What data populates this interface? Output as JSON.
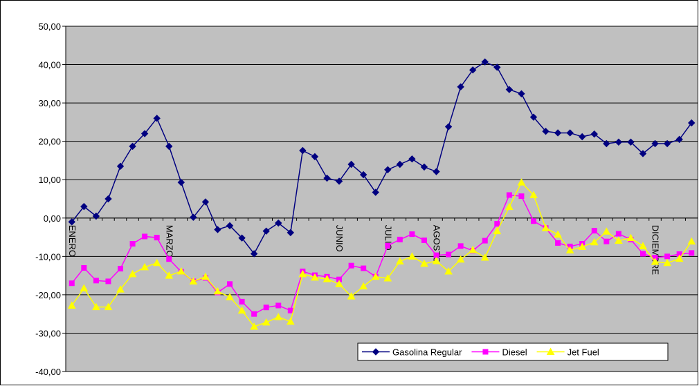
{
  "chart_data": {
    "type": "line",
    "categories": [
      "ENERO",
      null,
      null,
      null,
      null,
      null,
      null,
      null,
      "MARZO",
      null,
      null,
      null,
      null,
      null,
      null,
      null,
      null,
      null,
      null,
      null,
      null,
      null,
      "JUNIO",
      null,
      null,
      null,
      "JULIO",
      null,
      null,
      null,
      "AGOSTO",
      null,
      null,
      null,
      null,
      null,
      null,
      null,
      null,
      null,
      null,
      null,
      null,
      null,
      null,
      null,
      null,
      null,
      "DICIEMBRE",
      null,
      null,
      null
    ],
    "series": [
      {
        "name": "Gasolina Regular",
        "color": "#000080",
        "marker": "diamond",
        "values": [
          -1,
          3,
          0.5,
          5,
          13.5,
          18.7,
          22,
          26,
          18.7,
          9.3,
          0.2,
          4.2,
          -3,
          -2,
          -5.2,
          -9.3,
          -3.4,
          -1.3,
          -3.8,
          17.6,
          16,
          10.4,
          9.6,
          14,
          11.3,
          6.7,
          12.6,
          14,
          15.4,
          13.3,
          12.1,
          23.8,
          34.2,
          38.6,
          40.7,
          39.3,
          33.5,
          32.4,
          26.3,
          22.6,
          22.2,
          22.2,
          21.2,
          21.9,
          19.4,
          19.8,
          19.8,
          16.8,
          19.4,
          19.4,
          20.5,
          24.8
        ]
      },
      {
        "name": "Diesel",
        "color": "#FF00FF",
        "marker": "square",
        "values": [
          -17,
          -13,
          -16.3,
          -16.5,
          -13.2,
          -6.7,
          -4.8,
          -5.1,
          -10.7,
          -14,
          -16.5,
          -15.6,
          -19.4,
          -17.2,
          -21.8,
          -25,
          -23.3,
          -22.8,
          -24.1,
          -13.9,
          -14.9,
          -15.3,
          -16,
          -12.4,
          -13.1,
          -15.3,
          -7.2,
          -5.6,
          -4.2,
          -5.8,
          -9.7,
          -9.5,
          -7.3,
          -8.5,
          -5.9,
          -1.5,
          6,
          5.7,
          -0.8,
          -2.6,
          -6.5,
          -7.4,
          -6.7,
          -3.3,
          -6.1,
          -4.1,
          -5.6,
          -9.3,
          -10.3,
          -10,
          -9.4,
          -9.1
        ]
      },
      {
        "name": "Jet Fuel",
        "color": "#FFFF00",
        "marker": "triangle",
        "values": [
          -22.8,
          -18.3,
          -23.2,
          -23.2,
          -18.6,
          -14.6,
          -12.8,
          -11.7,
          -15,
          -13.9,
          -16.5,
          -15.3,
          -19.1,
          -20.6,
          -24.1,
          -28.3,
          -27.2,
          -25.8,
          -27,
          -14.6,
          -15.5,
          -15.9,
          -17.2,
          -20.4,
          -17.8,
          -15.3,
          -15.7,
          -11.3,
          -10,
          -11.9,
          -11.2,
          -13.9,
          -10.8,
          -8.3,
          -10.3,
          -3.4,
          2.9,
          9.3,
          6,
          -2.6,
          -4.3,
          -8.4,
          -7.5,
          -6.3,
          -3.5,
          -5.9,
          -5.2,
          -7.3,
          -11.4,
          -11.7,
          -10.6,
          -6.1
        ]
      }
    ],
    "ylim": [
      -40,
      50
    ],
    "yticks": [
      {
        "value": -40,
        "label": "-40,00"
      },
      {
        "value": -30,
        "label": "-30,00"
      },
      {
        "value": -20,
        "label": "-20,00"
      },
      {
        "value": -10,
        "label": "-10,00"
      },
      {
        "value": 0,
        "label": "0,00"
      },
      {
        "value": 10,
        "label": "10,00"
      },
      {
        "value": 20,
        "label": "20,00"
      },
      {
        "value": 30,
        "label": "30,00"
      },
      {
        "value": 40,
        "label": "40,00"
      },
      {
        "value": 50,
        "label": "50,00"
      }
    ],
    "grid": true,
    "plot_background": "#C0C0C0",
    "legend_position": "lower-right"
  }
}
